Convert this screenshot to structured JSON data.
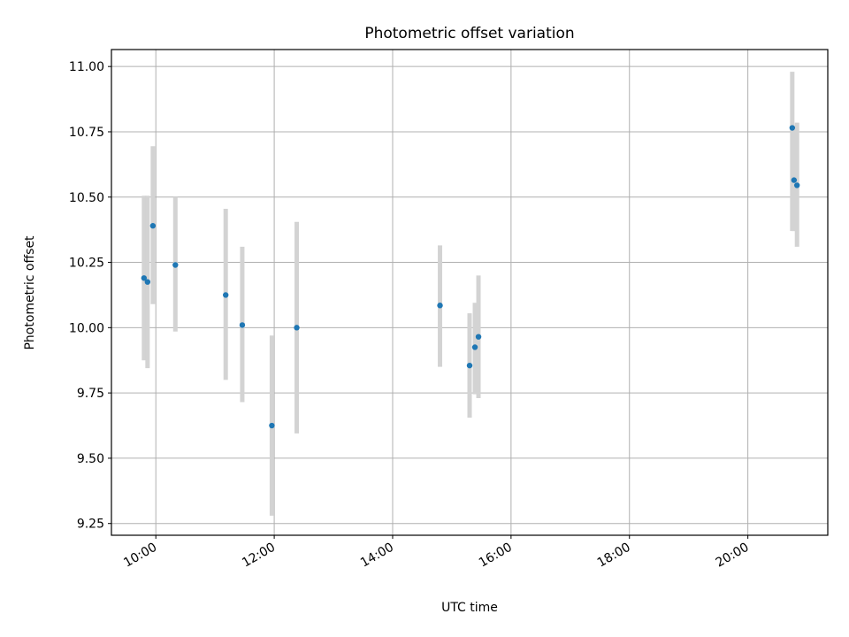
{
  "chart_data": {
    "type": "scatter",
    "title": "Photometric offset variation",
    "xlabel": "UTC time",
    "ylabel": "Photometric offset",
    "x_unit": "hours (UTC, decimal)",
    "xlim": [
      9.25,
      21.35
    ],
    "ylim": [
      9.205,
      11.065
    ],
    "x_ticks": [
      {
        "value": 10,
        "label": "10:00"
      },
      {
        "value": 12,
        "label": "12:00"
      },
      {
        "value": 14,
        "label": "14:00"
      },
      {
        "value": 16,
        "label": "16:00"
      },
      {
        "value": 18,
        "label": "18:00"
      },
      {
        "value": 20,
        "label": "20:00"
      }
    ],
    "y_ticks": [
      {
        "value": 9.25,
        "label": "9.25"
      },
      {
        "value": 9.5,
        "label": "9.50"
      },
      {
        "value": 9.75,
        "label": "9.75"
      },
      {
        "value": 10.0,
        "label": "10.00"
      },
      {
        "value": 10.25,
        "label": "10.25"
      },
      {
        "value": 10.5,
        "label": "10.50"
      },
      {
        "value": 10.75,
        "label": "10.75"
      },
      {
        "value": 11.0,
        "label": "11.00"
      }
    ],
    "grid": true,
    "colors": {
      "point": "#1f77b4",
      "errorbar": "#d3d3d3"
    },
    "points": [
      {
        "x": 9.8,
        "y": 10.19,
        "yerr_low": 9.875,
        "yerr_high": 10.505
      },
      {
        "x": 9.86,
        "y": 10.175,
        "yerr_low": 9.845,
        "yerr_high": 10.505
      },
      {
        "x": 9.95,
        "y": 10.39,
        "yerr_low": 10.09,
        "yerr_high": 10.695
      },
      {
        "x": 10.33,
        "y": 10.24,
        "yerr_low": 9.985,
        "yerr_high": 10.5
      },
      {
        "x": 11.18,
        "y": 10.125,
        "yerr_low": 9.8,
        "yerr_high": 10.455
      },
      {
        "x": 11.46,
        "y": 10.01,
        "yerr_low": 9.715,
        "yerr_high": 10.31
      },
      {
        "x": 11.96,
        "y": 9.625,
        "yerr_low": 9.28,
        "yerr_high": 9.97
      },
      {
        "x": 12.38,
        "y": 10.0,
        "yerr_low": 9.595,
        "yerr_high": 10.405
      },
      {
        "x": 14.8,
        "y": 10.085,
        "yerr_low": 9.85,
        "yerr_high": 10.315
      },
      {
        "x": 15.3,
        "y": 9.855,
        "yerr_low": 9.655,
        "yerr_high": 10.055
      },
      {
        "x": 15.39,
        "y": 9.925,
        "yerr_low": 9.745,
        "yerr_high": 10.095
      },
      {
        "x": 15.45,
        "y": 9.965,
        "yerr_low": 9.73,
        "yerr_high": 10.2
      },
      {
        "x": 20.75,
        "y": 10.765,
        "yerr_low": 10.37,
        "yerr_high": 10.98
      },
      {
        "x": 20.78,
        "y": 10.565,
        "yerr_low": 10.37,
        "yerr_high": 10.765
      },
      {
        "x": 20.83,
        "y": 10.545,
        "yerr_low": 10.31,
        "yerr_high": 10.785
      }
    ]
  }
}
